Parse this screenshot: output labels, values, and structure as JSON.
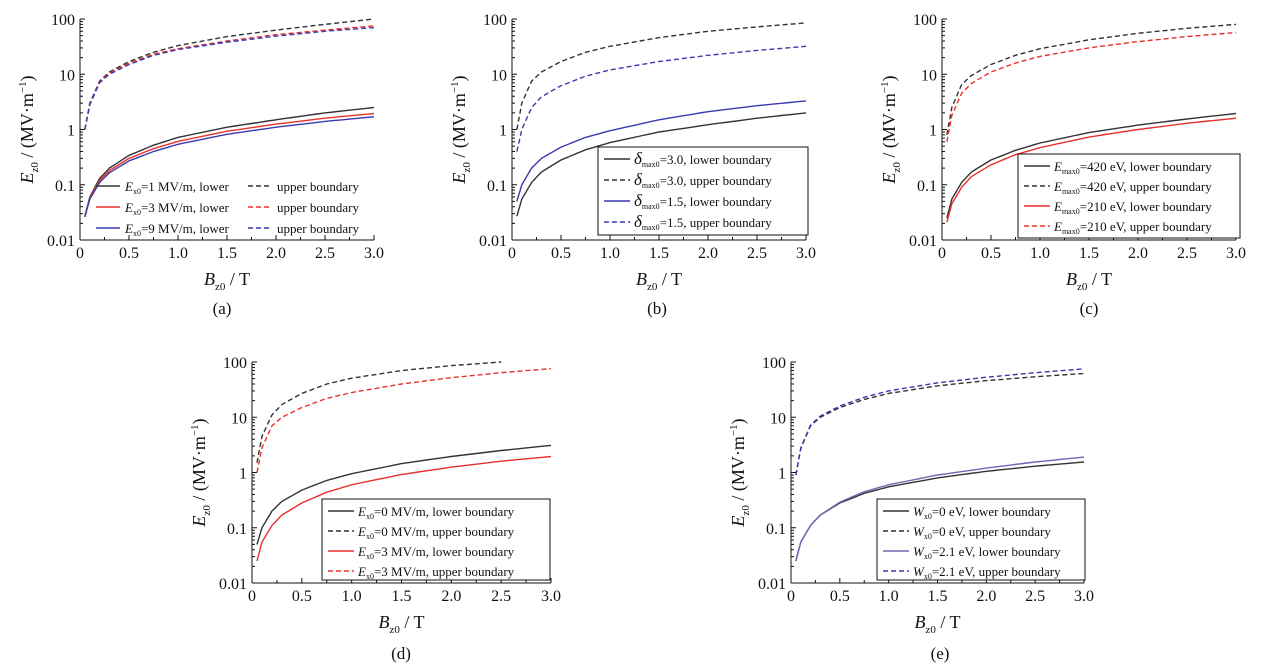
{
  "chart_data": [
    {
      "panel": "(a)",
      "type": "line",
      "xlabel": {
        "main": "B",
        "sub": "z0",
        "unit": " / T"
      },
      "ylabel": {
        "main": "E",
        "sub": "z0",
        "unit": " / (MV·m",
        "sup": "−1",
        "close": ")"
      },
      "xlim": [
        0,
        3.0
      ],
      "ylim": [
        0.01,
        100
      ],
      "y_scale": "log",
      "x_ticks": [
        "0",
        "0.5",
        "1.0",
        "1.5",
        "2.0",
        "2.5",
        "3.0"
      ],
      "y_ticks": [
        "0.01",
        "0.1",
        "1",
        "10",
        "100"
      ],
      "grid": false,
      "legend_placement": "bottom-left",
      "legend_layout": "pairs",
      "legend_frame": false,
      "x": [
        0.05,
        0.1,
        0.2,
        0.3,
        0.5,
        0.75,
        1.0,
        1.5,
        2.0,
        2.5,
        3.0
      ],
      "series": [
        {
          "legend_main": "E",
          "legend_sub": "x0",
          "legend_text": "=1 MV/m, lower",
          "color": "#333333",
          "dash": "solid",
          "y": [
            0.027,
            0.06,
            0.13,
            0.2,
            0.34,
            0.52,
            0.72,
            1.1,
            1.5,
            2.0,
            2.5
          ]
        },
        {
          "legend_text": "upper boundary",
          "color": "#333333",
          "dash": "dashed",
          "y": [
            1.0,
            3.0,
            7.5,
            11,
            17,
            25,
            33,
            48,
            63,
            80,
            100
          ]
        },
        {
          "legend_main": "E",
          "legend_sub": "x0",
          "legend_text": "=3 MV/m, lower",
          "color": "#e8302a",
          "dash": "solid",
          "y": [
            0.027,
            0.058,
            0.12,
            0.18,
            0.3,
            0.45,
            0.61,
            0.93,
            1.25,
            1.6,
            1.95
          ]
        },
        {
          "legend_text": "upper boundary",
          "color": "#e8302a",
          "dash": "dashed",
          "y": [
            1.0,
            2.9,
            7.2,
            10.5,
            16,
            23,
            29,
            40,
            52,
            63,
            75
          ]
        },
        {
          "legend_main": "E",
          "legend_sub": "x0",
          "legend_text": "=9 MV/m, lower",
          "color": "#3a3ab0",
          "dash": "solid",
          "y": [
            0.026,
            0.055,
            0.11,
            0.165,
            0.27,
            0.4,
            0.54,
            0.82,
            1.1,
            1.4,
            1.7
          ]
        },
        {
          "legend_text": "upper boundary",
          "color": "#3a3ab0",
          "dash": "dashed",
          "y": [
            1.0,
            2.8,
            7.0,
            10,
            15,
            22,
            28,
            38,
            49,
            60,
            70
          ]
        }
      ]
    },
    {
      "panel": "(b)",
      "type": "line",
      "xlabel": {
        "main": "B",
        "sub": "z0",
        "unit": " / T"
      },
      "ylabel": {
        "main": "E",
        "sub": "z0",
        "unit": " / (MV·m",
        "sup": "−1",
        "close": ")"
      },
      "xlim": [
        0,
        3.0
      ],
      "ylim": [
        0.01,
        100
      ],
      "y_scale": "log",
      "x_ticks": [
        "0",
        "0.5",
        "1.0",
        "1.5",
        "2.0",
        "2.5",
        "3.0"
      ],
      "y_ticks": [
        "0.01",
        "0.1",
        "1",
        "10",
        "100"
      ],
      "grid": false,
      "legend_placement": "bottom-right",
      "legend_layout": "stacked",
      "legend_frame": true,
      "x": [
        0.05,
        0.1,
        0.2,
        0.3,
        0.5,
        0.75,
        1.0,
        1.5,
        2.0,
        2.5,
        3.0
      ],
      "series": [
        {
          "legend_main": "δ",
          "legend_sub": "max0",
          "legend_text": "=3.0, lower boundary",
          "color": "#333333",
          "dash": "solid",
          "y": [
            0.027,
            0.055,
            0.11,
            0.17,
            0.28,
            0.43,
            0.58,
            0.9,
            1.22,
            1.6,
            2.0
          ]
        },
        {
          "legend_main": "δ",
          "legend_sub": "max0",
          "legend_text": "=3.0, upper boundary",
          "color": "#333333",
          "dash": "dashed",
          "y": [
            1.0,
            3.0,
            7.5,
            11,
            17,
            25,
            32,
            46,
            60,
            72,
            85
          ]
        },
        {
          "legend_main": "δ",
          "legend_sub": "max0",
          "legend_text": "=1.5, lower boundary",
          "color": "#3a3ab0",
          "dash": "solid",
          "y": [
            0.05,
            0.1,
            0.2,
            0.3,
            0.48,
            0.72,
            0.95,
            1.5,
            2.1,
            2.7,
            3.3
          ]
        },
        {
          "legend_main": "δ",
          "legend_sub": "max0",
          "legend_text": "=1.5, upper boundary",
          "color": "#3a3ab0",
          "dash": "dashed",
          "y": [
            0.4,
            1.0,
            2.5,
            3.9,
            6.2,
            9.2,
            12,
            17,
            22,
            27,
            32
          ]
        }
      ]
    },
    {
      "panel": "(c)",
      "type": "line",
      "xlabel": {
        "main": "B",
        "sub": "z0",
        "unit": " / T"
      },
      "ylabel": {
        "main": "E",
        "sub": "z0",
        "unit": " / (MV·m",
        "sup": "−1",
        "close": ")"
      },
      "xlim": [
        0,
        3.0
      ],
      "ylim": [
        0.01,
        100
      ],
      "y_scale": "log",
      "x_ticks": [
        "0",
        "0.5",
        "1.0",
        "1.5",
        "2.0",
        "2.5",
        "3.0"
      ],
      "y_ticks": [
        "0.01",
        "0.1",
        "1",
        "10",
        "100"
      ],
      "grid": false,
      "legend_placement": "bottom-right",
      "legend_layout": "stacked",
      "legend_frame": true,
      "x": [
        0.05,
        0.1,
        0.2,
        0.3,
        0.5,
        0.75,
        1.0,
        1.5,
        2.0,
        2.5,
        3.0
      ],
      "series": [
        {
          "legend_main": "E",
          "legend_sub": "max0",
          "legend_text": "=420 eV, lower boundary",
          "color": "#333333",
          "dash": "solid",
          "y": [
            0.025,
            0.055,
            0.11,
            0.17,
            0.28,
            0.42,
            0.57,
            0.88,
            1.2,
            1.55,
            1.95
          ]
        },
        {
          "legend_main": "E",
          "legend_sub": "max0",
          "legend_text": "=420 eV, upper boundary",
          "color": "#333333",
          "dash": "dashed",
          "y": [
            0.8,
            2.5,
            6.5,
            9.5,
            15,
            22,
            29,
            42,
            55,
            68,
            80
          ]
        },
        {
          "legend_main": "E",
          "legend_sub": "max0",
          "legend_text": "=210 eV, lower boundary",
          "color": "#e8302a",
          "dash": "solid",
          "y": [
            0.021,
            0.045,
            0.09,
            0.14,
            0.23,
            0.35,
            0.47,
            0.73,
            1.0,
            1.3,
            1.6
          ]
        },
        {
          "legend_main": "E",
          "legend_sub": "max0",
          "legend_text": "=210 eV, upper boundary",
          "color": "#e8302a",
          "dash": "dashed",
          "y": [
            0.6,
            1.8,
            4.5,
            6.8,
            11,
            16,
            21,
            30,
            39,
            48,
            57
          ]
        }
      ]
    },
    {
      "panel": "(d)",
      "type": "line",
      "xlabel": {
        "main": "B",
        "sub": "z0",
        "unit": " / T"
      },
      "ylabel": {
        "main": "E",
        "sub": "z0",
        "unit": " / (MV·m",
        "sup": "−1",
        "close": ")"
      },
      "xlim": [
        0,
        3.0
      ],
      "ylim": [
        0.01,
        100
      ],
      "y_scale": "log",
      "x_ticks": [
        "0",
        "0.5",
        "1.0",
        "1.5",
        "2.0",
        "2.5",
        "3.0"
      ],
      "y_ticks": [
        "0.01",
        "0.1",
        "1",
        "10",
        "100"
      ],
      "grid": false,
      "legend_placement": "bottom-right",
      "legend_layout": "stacked",
      "legend_frame": true,
      "x": [
        0.05,
        0.1,
        0.2,
        0.3,
        0.5,
        0.75,
        1.0,
        1.5,
        2.0,
        2.5,
        3.0
      ],
      "series": [
        {
          "legend_main": "E",
          "legend_sub": "x0",
          "legend_text": "=0 MV/m, lower boundary",
          "color": "#333333",
          "dash": "solid",
          "y": [
            0.05,
            0.1,
            0.2,
            0.3,
            0.48,
            0.72,
            0.95,
            1.45,
            1.95,
            2.5,
            3.1
          ]
        },
        {
          "legend_main": "E",
          "legend_sub": "x0",
          "legend_text": "=0 MV/m, upper boundary",
          "color": "#333333",
          "dash": "dashed",
          "y": [
            1.5,
            4.5,
            11,
            17,
            27,
            40,
            51,
            70,
            86,
            100,
            null
          ]
        },
        {
          "legend_main": "E",
          "legend_sub": "x0",
          "legend_text": "=3 MV/m, lower boundary",
          "color": "#e8302a",
          "dash": "solid",
          "y": [
            0.025,
            0.055,
            0.11,
            0.17,
            0.28,
            0.44,
            0.6,
            0.92,
            1.25,
            1.6,
            1.95
          ]
        },
        {
          "legend_main": "E",
          "legend_sub": "x0",
          "legend_text": "=3 MV/m, upper boundary",
          "color": "#e8302a",
          "dash": "dashed",
          "y": [
            1.0,
            2.8,
            7.0,
            10,
            15,
            22,
            28,
            40,
            52,
            64,
            76
          ]
        }
      ]
    },
    {
      "panel": "(e)",
      "type": "line",
      "xlabel": {
        "main": "B",
        "sub": "z0",
        "unit": " / T"
      },
      "ylabel": {
        "main": "E",
        "sub": "z0",
        "unit": " / (MV·m",
        "sup": "−1",
        "close": ")"
      },
      "xlim": [
        0,
        3.0
      ],
      "ylim": [
        0.01,
        100
      ],
      "y_scale": "log",
      "x_ticks": [
        "0",
        "0.5",
        "1.0",
        "1.5",
        "2.0",
        "2.5",
        "3.0"
      ],
      "y_ticks": [
        "0.01",
        "0.1",
        "1",
        "10",
        "100"
      ],
      "grid": false,
      "legend_placement": "bottom-right",
      "legend_layout": "stacked",
      "legend_frame": true,
      "x": [
        0.05,
        0.1,
        0.2,
        0.3,
        0.5,
        0.75,
        1.0,
        1.5,
        2.0,
        2.5,
        3.0
      ],
      "series": [
        {
          "legend_main": "W",
          "legend_sub": "x0",
          "legend_text": "=0 eV, lower boundary",
          "color": "#333333",
          "dash": "solid",
          "y": [
            0.025,
            0.055,
            0.11,
            0.17,
            0.28,
            0.42,
            0.55,
            0.8,
            1.05,
            1.3,
            1.55
          ]
        },
        {
          "legend_main": "W",
          "legend_sub": "x0",
          "legend_text": "=0 eV, upper boundary",
          "color": "#333333",
          "dash": "dashed",
          "y": [
            0.9,
            2.7,
            7.0,
            10,
            15,
            21,
            27,
            37,
            46,
            54,
            62
          ]
        },
        {
          "legend_main": "W",
          "legend_sub": "x0",
          "legend_text": "=2.1 eV, lower boundary",
          "color": "#6a6ab8",
          "dash": "solid",
          "y": [
            0.025,
            0.055,
            0.11,
            0.17,
            0.29,
            0.45,
            0.6,
            0.9,
            1.2,
            1.55,
            1.9
          ]
        },
        {
          "legend_main": "W",
          "legend_sub": "x0",
          "legend_text": "=2.1 eV, upper boundary",
          "color": "#3a3ab0",
          "dash": "dashed",
          "y": [
            0.9,
            2.8,
            7.2,
            10.5,
            16,
            23,
            30,
            42,
            53,
            64,
            75
          ]
        }
      ]
    }
  ]
}
